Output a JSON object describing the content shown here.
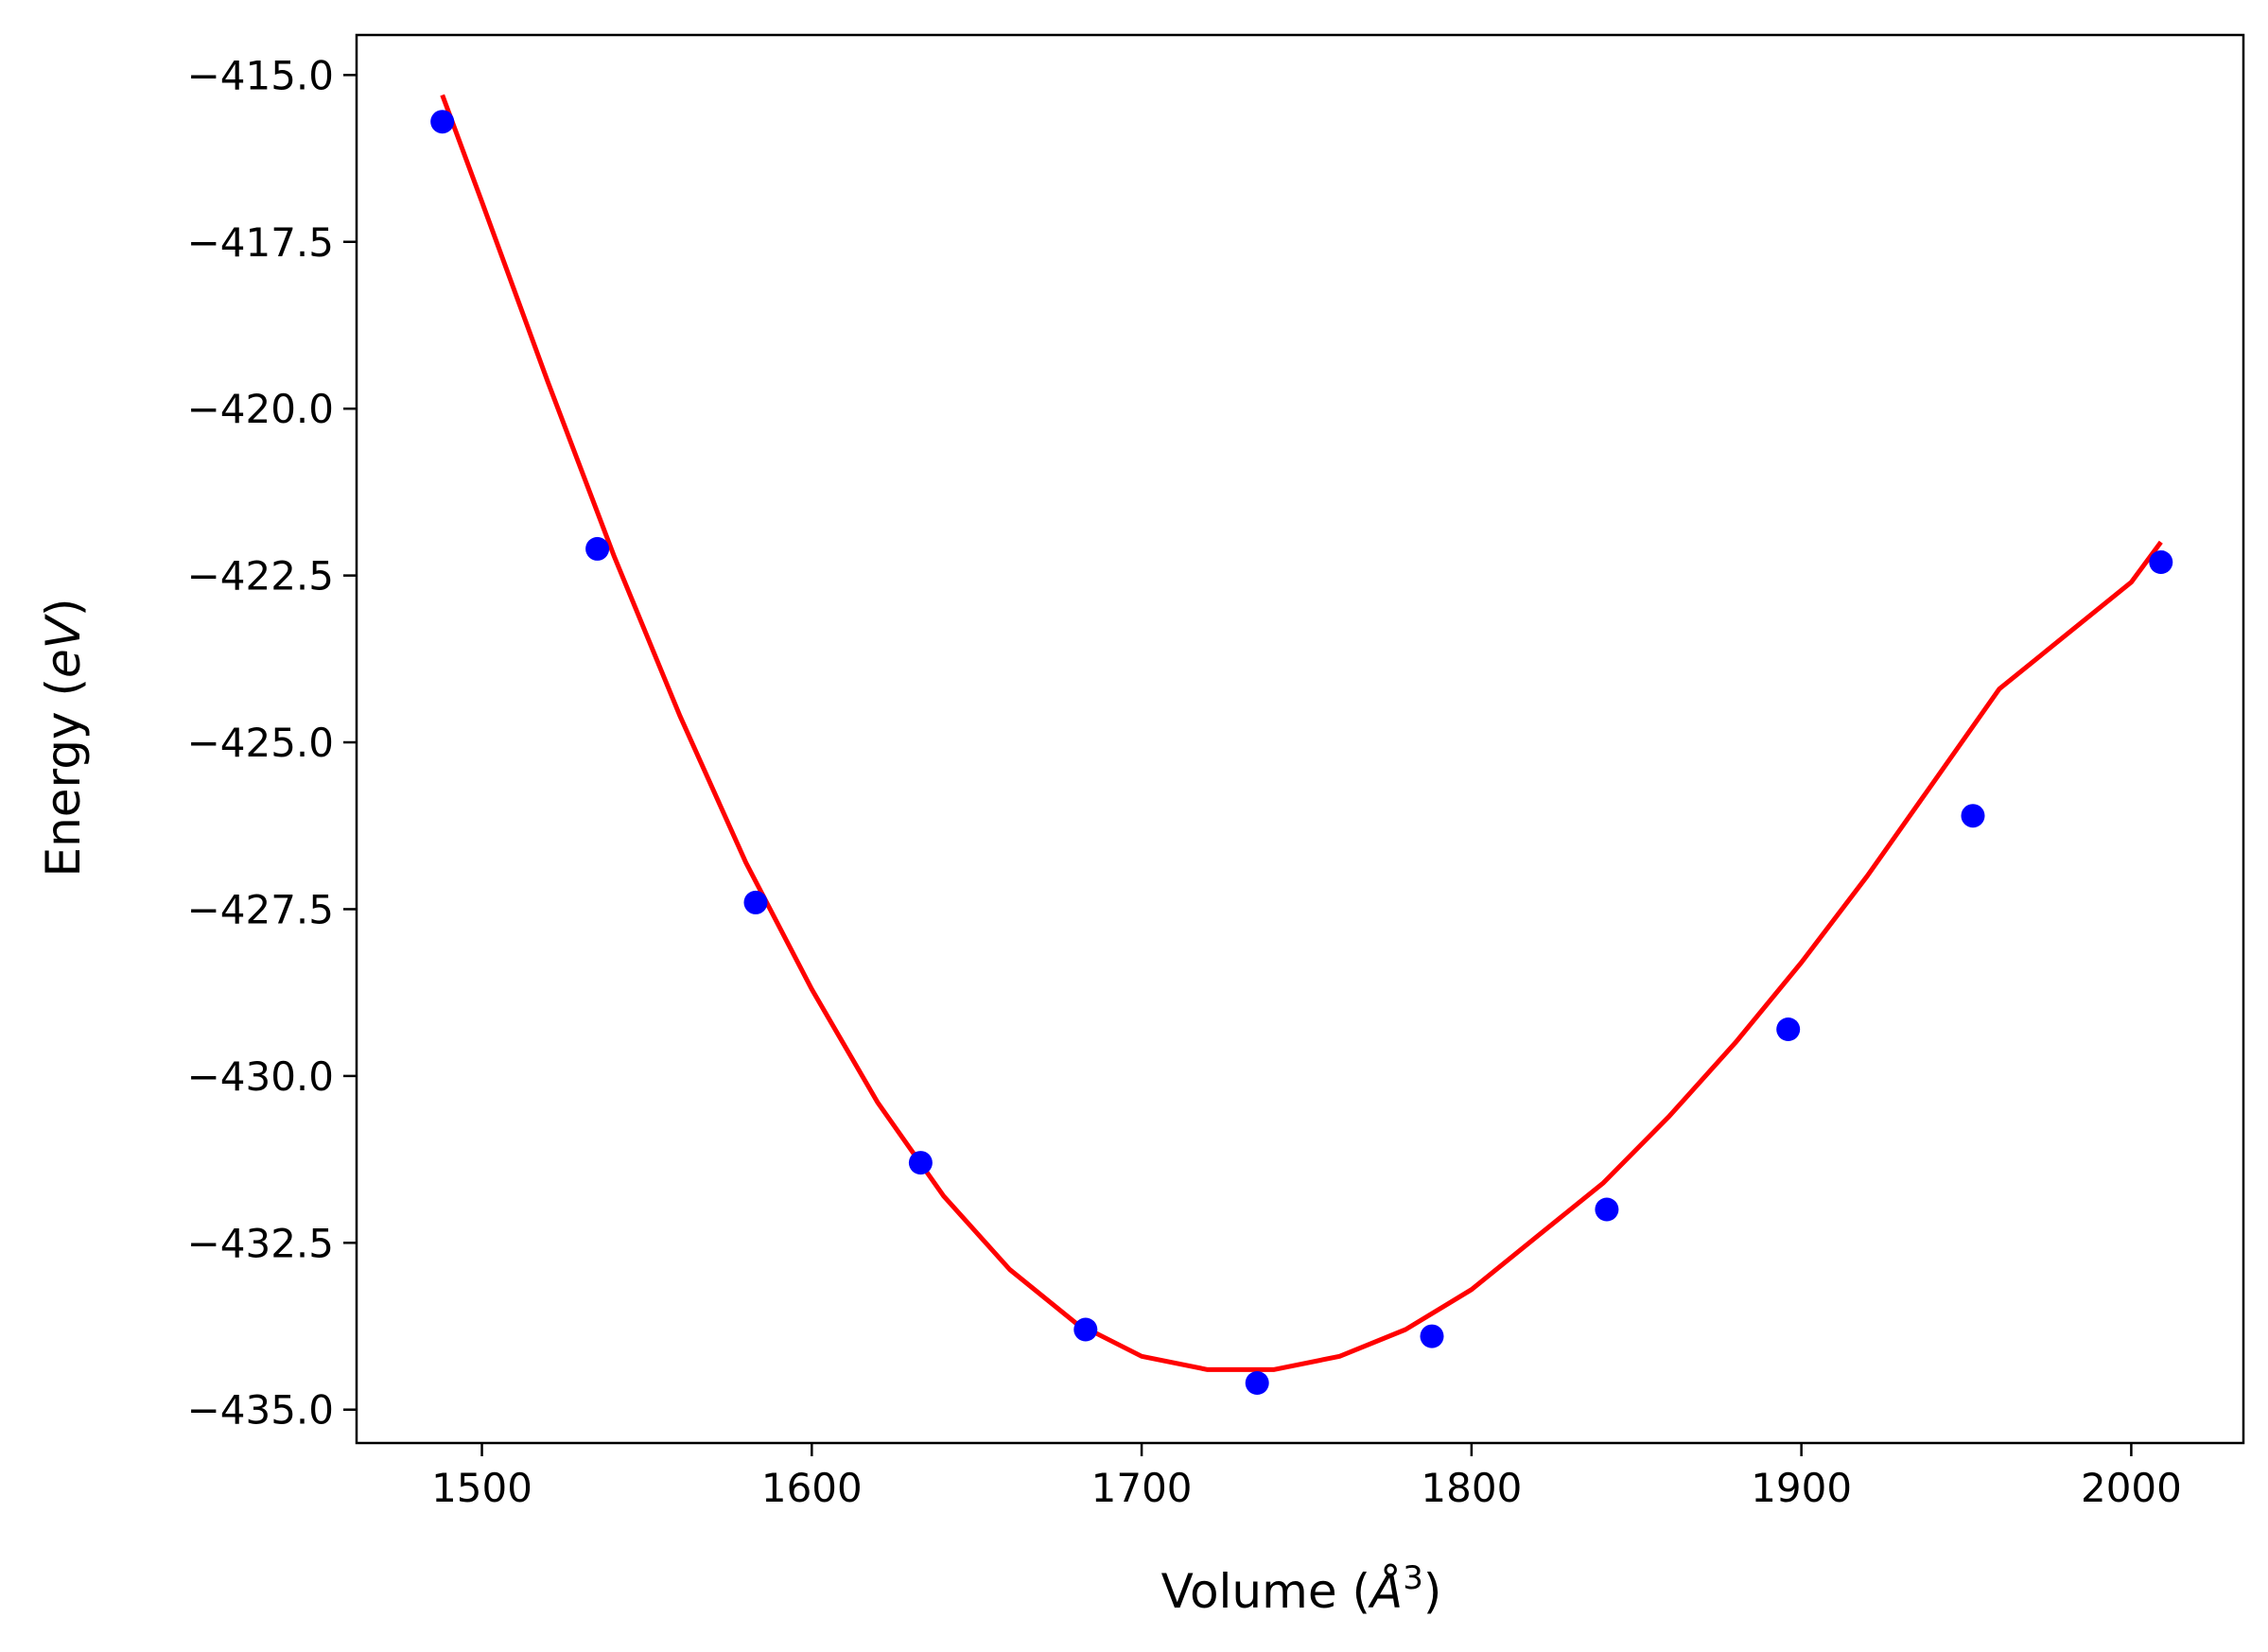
{
  "chart_data": {
    "type": "scatter",
    "title": "",
    "xlabel_prefix": "Volume (",
    "xlabel_unit": "Å",
    "xlabel_sup": "3",
    "xlabel_suffix": ")",
    "ylabel_prefix": "Energy (",
    "ylabel_unit": "eV",
    "ylabel_suffix": ")",
    "xlim": [
      1462,
      2034
    ],
    "ylim": [
      -435.5,
      -414.4
    ],
    "xticks": [
      1500,
      1600,
      1700,
      1800,
      1900,
      2000
    ],
    "xtick_labels": [
      "1500",
      "1600",
      "1700",
      "1800",
      "1900",
      "2000"
    ],
    "yticks": [
      -415.0,
      -417.5,
      -420.0,
      -422.5,
      -425.0,
      -427.5,
      -430.0,
      -432.5,
      -435.0
    ],
    "ytick_labels": [
      "−415.0",
      "−417.5",
      "−420.0",
      "−422.5",
      "−425.0",
      "−427.5",
      "−430.0",
      "−432.5",
      "−435.0"
    ],
    "grid": false,
    "series": [
      {
        "kind": "points",
        "color": "#0000ff",
        "x": [
          1488,
          1535,
          1583,
          1633,
          1683,
          1735,
          1788,
          1841,
          1896,
          1952,
          2009
        ],
        "y": [
          -415.7,
          -422.1,
          -427.4,
          -431.3,
          -433.8,
          -434.6,
          -433.9,
          -432.0,
          -429.3,
          -426.1,
          -422.3
        ]
      },
      {
        "kind": "fit-line",
        "color": "#ff0000",
        "x": [
          1488,
          1500,
          1520,
          1540,
          1560,
          1580,
          1600,
          1620,
          1640,
          1660,
          1680,
          1700,
          1720,
          1740,
          1760,
          1780,
          1800,
          1820,
          1840,
          1860,
          1880,
          1900,
          1920,
          1940,
          1960,
          1980,
          2000,
          2009
        ],
        "y": [
          -415.3,
          -416.9,
          -419.6,
          -422.2,
          -424.6,
          -426.8,
          -428.7,
          -430.4,
          -431.8,
          -432.9,
          -433.7,
          -434.2,
          -434.4,
          -434.4,
          -434.2,
          -433.8,
          -433.2,
          -432.4,
          -431.6,
          -430.6,
          -429.5,
          -428.3,
          -427.0,
          -425.6,
          -424.2,
          -423.4,
          -422.6,
          -422.0
        ]
      }
    ]
  }
}
